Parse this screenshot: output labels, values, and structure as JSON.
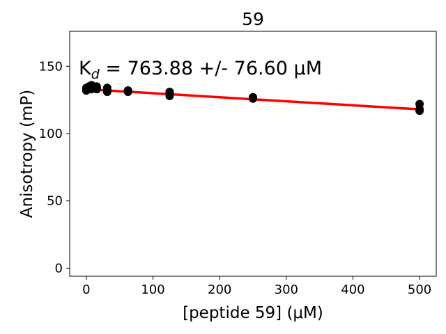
{
  "chart_data": {
    "type": "scatter",
    "title": "59",
    "xlabel": "[peptide 59] (μM)",
    "ylabel": "Anisotropy (mP)",
    "xlim": [
      -25,
      525
    ],
    "ylim": [
      -6,
      176
    ],
    "xticks": [
      0,
      100,
      200,
      300,
      400,
      500
    ],
    "yticks": [
      0,
      50,
      100,
      150
    ],
    "grid": false,
    "annotation": "K_d = 763.88 +/- 76.60 μM",
    "colors": {
      "points": "#000000",
      "fit": "#ff0000"
    },
    "points": [
      {
        "x": 0,
        "y": 133
      },
      {
        "x": 0,
        "y": 134
      },
      {
        "x": 0,
        "y": 132
      },
      {
        "x": 3.9,
        "y": 134
      },
      {
        "x": 3.9,
        "y": 133
      },
      {
        "x": 3.9,
        "y": 135
      },
      {
        "x": 7.8,
        "y": 136
      },
      {
        "x": 7.8,
        "y": 133
      },
      {
        "x": 7.8,
        "y": 134
      },
      {
        "x": 15.6,
        "y": 135
      },
      {
        "x": 15.6,
        "y": 133
      },
      {
        "x": 15.6,
        "y": 134
      },
      {
        "x": 31.3,
        "y": 134
      },
      {
        "x": 31.3,
        "y": 132
      },
      {
        "x": 31.3,
        "y": 131
      },
      {
        "x": 62.5,
        "y": 132
      },
      {
        "x": 62.5,
        "y": 131
      },
      {
        "x": 62.5,
        "y": 132
      },
      {
        "x": 125,
        "y": 131
      },
      {
        "x": 125,
        "y": 130
      },
      {
        "x": 125,
        "y": 128
      },
      {
        "x": 250,
        "y": 127
      },
      {
        "x": 250,
        "y": 126
      },
      {
        "x": 250,
        "y": 127
      },
      {
        "x": 500,
        "y": 122
      },
      {
        "x": 500,
        "y": 118
      },
      {
        "x": 500,
        "y": 117
      }
    ],
    "fit_line": {
      "x": [
        0,
        500
      ],
      "y": [
        133,
        118
      ]
    }
  }
}
